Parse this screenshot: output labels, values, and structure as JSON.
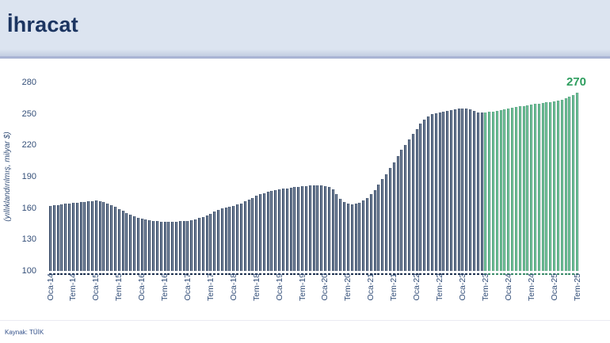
{
  "header": {
    "title": "İhracat"
  },
  "source_note": "Kaynak: TÜİK",
  "chart_data": {
    "type": "bar",
    "title": "İhracat",
    "ylabel": "(yıllıklandırılmış, milyar $)",
    "ylim": [
      100,
      280
    ],
    "yticks": [
      100,
      130,
      160,
      190,
      220,
      250,
      280
    ],
    "grid": false,
    "legend": false,
    "start_month": "Oca-14",
    "end_month": "Tem-25",
    "x_tick_interval_months": 6,
    "x_tick_labels": [
      "Oca-14",
      "Tem-14",
      "Oca-15",
      "Tem-15",
      "Oca-16",
      "Tem-16",
      "Oca-17",
      "Tem-17",
      "Oca-18",
      "Tem-18",
      "Oca-19",
      "Tem-19",
      "Oca-20",
      "Tem-20",
      "Oca-21",
      "Tem-21",
      "Oca-22",
      "Tem-22",
      "Oca-23",
      "Tem-23",
      "Oca-24",
      "Tem-24",
      "Oca-25",
      "Tem-25"
    ],
    "values": [
      162.0,
      162.5,
      163.0,
      163.5,
      164.0,
      164.5,
      165.0,
      165.3,
      165.7,
      166.0,
      166.4,
      166.8,
      167.0,
      166.6,
      165.8,
      164.5,
      163.0,
      161.2,
      159.2,
      157.2,
      155.3,
      153.6,
      152.2,
      151.0,
      150.0,
      149.1,
      148.3,
      147.7,
      147.3,
      147.0,
      146.9,
      146.9,
      147.0,
      147.1,
      147.3,
      147.6,
      148.0,
      148.6,
      149.4,
      150.5,
      151.8,
      153.2,
      154.8,
      156.4,
      158.0,
      159.5,
      160.7,
      161.5,
      162.3,
      163.3,
      164.6,
      166.2,
      168.0,
      169.8,
      171.5,
      173.0,
      174.4,
      175.6,
      176.6,
      177.3,
      177.9,
      178.4,
      178.9,
      179.4,
      179.9,
      180.3,
      180.7,
      181.1,
      181.5,
      181.8,
      181.9,
      181.7,
      181.2,
      180.3,
      178.0,
      173.5,
      169.0,
      166.0,
      164.3,
      163.8,
      164.2,
      165.3,
      167.0,
      169.5,
      173.0,
      177.5,
      182.5,
      187.5,
      192.5,
      198.0,
      204.0,
      210.0,
      215.5,
      220.5,
      225.5,
      230.5,
      235.5,
      240.5,
      244.5,
      247.5,
      249.5,
      250.8,
      251.6,
      252.2,
      252.7,
      253.2,
      254.0,
      254.8,
      255.4,
      255.2,
      254.2,
      252.8,
      251.6,
      251.0,
      251.2,
      251.8,
      252.4,
      253.0,
      253.6,
      254.3,
      255.0,
      255.7,
      256.4,
      257.0,
      257.6,
      258.2,
      258.8,
      259.3,
      259.8,
      260.3,
      260.8,
      261.3,
      262.0,
      262.8,
      263.7,
      264.8,
      266.2,
      268.0,
      270.0
    ],
    "highlight_from_label": "Tem-23",
    "highlight_from_index": 114,
    "last_value_label": "270",
    "colors": {
      "header_bg": "#dce4f0",
      "title_text": "#1c3561",
      "bar_navy_edge": "#1d3150",
      "bar_navy_center": "#9fadc0",
      "bar_green_edge": "#3b8a6a",
      "bar_green_center": "#96e7b7",
      "axis_text": "#334e78",
      "value_label": "#2f9e5f"
    }
  }
}
